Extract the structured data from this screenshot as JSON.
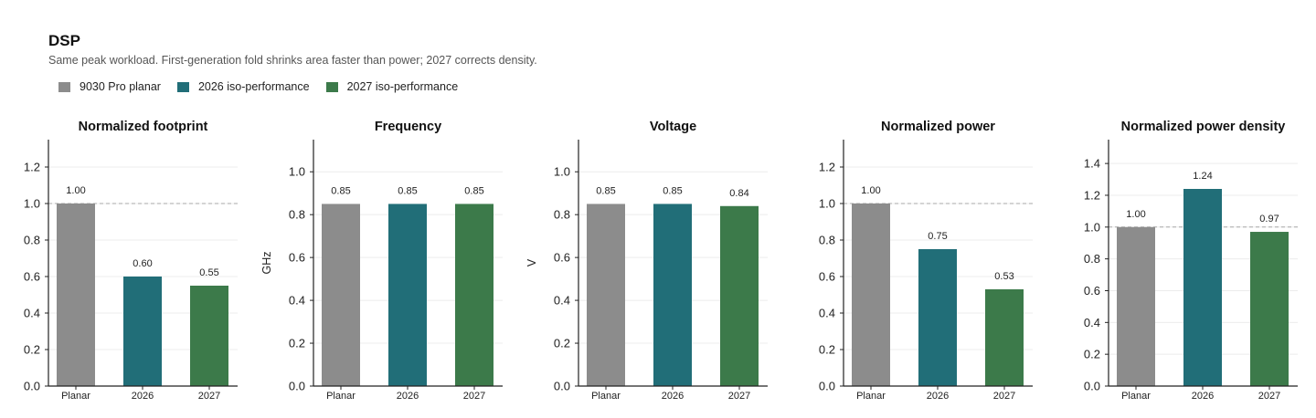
{
  "header": {
    "title": "DSP",
    "subtitle": "Same peak workload. First-generation fold shrinks area faster than power; 2027 corrects density."
  },
  "legend": [
    {
      "label": "9030 Pro planar",
      "color": "#8c8c8c"
    },
    {
      "label": "2026 iso-performance",
      "color": "#216e78"
    },
    {
      "label": "2027 iso-performance",
      "color": "#3c7a4a"
    }
  ],
  "chart_data": [
    {
      "type": "bar",
      "title": "Normalized footprint",
      "ylabel": "",
      "categories": [
        "Planar",
        "2026",
        "2027"
      ],
      "values": [
        1.0,
        0.6,
        0.55
      ],
      "value_labels": [
        "1.00",
        "0.60",
        "0.55"
      ],
      "ylim": [
        0,
        1.35
      ],
      "yticks": [
        0.0,
        0.2,
        0.4,
        0.6,
        0.8,
        1.0,
        1.2
      ],
      "ytick_labels": [
        "0.0",
        "0.2",
        "0.4",
        "0.6",
        "0.8",
        "1.0",
        "1.2"
      ],
      "reference_line": 1.0,
      "grid": true
    },
    {
      "type": "bar",
      "title": "Frequency",
      "ylabel": "GHz",
      "categories": [
        "Planar",
        "2026",
        "2027"
      ],
      "values": [
        0.85,
        0.85,
        0.85
      ],
      "value_labels": [
        "0.85",
        "0.85",
        "0.85"
      ],
      "ylim": [
        0,
        1.15
      ],
      "yticks": [
        0.0,
        0.2,
        0.4,
        0.6,
        0.8,
        1.0
      ],
      "ytick_labels": [
        "0.0",
        "0.2",
        "0.4",
        "0.6",
        "0.8",
        "1.0"
      ],
      "reference_line": null,
      "grid": true
    },
    {
      "type": "bar",
      "title": "Voltage",
      "ylabel": "V",
      "categories": [
        "Planar",
        "2026",
        "2027"
      ],
      "values": [
        0.85,
        0.85,
        0.84
      ],
      "value_labels": [
        "0.85",
        "0.85",
        "0.84"
      ],
      "ylim": [
        0,
        1.15
      ],
      "yticks": [
        0.0,
        0.2,
        0.4,
        0.6,
        0.8,
        1.0
      ],
      "ytick_labels": [
        "0.0",
        "0.2",
        "0.4",
        "0.6",
        "0.8",
        "1.0"
      ],
      "reference_line": null,
      "grid": true
    },
    {
      "type": "bar",
      "title": "Normalized power",
      "ylabel": "",
      "categories": [
        "Planar",
        "2026",
        "2027"
      ],
      "values": [
        1.0,
        0.75,
        0.53
      ],
      "value_labels": [
        "1.00",
        "0.75",
        "0.53"
      ],
      "ylim": [
        0,
        1.35
      ],
      "yticks": [
        0.0,
        0.2,
        0.4,
        0.6,
        0.8,
        1.0,
        1.2
      ],
      "ytick_labels": [
        "0.0",
        "0.2",
        "0.4",
        "0.6",
        "0.8",
        "1.0",
        "1.2"
      ],
      "reference_line": 1.0,
      "grid": true
    },
    {
      "type": "bar",
      "title": "Normalized power density",
      "ylabel": "",
      "categories": [
        "Planar",
        "2026",
        "2027"
      ],
      "values": [
        1.0,
        1.24,
        0.97
      ],
      "value_labels": [
        "1.00",
        "1.24",
        "0.97"
      ],
      "ylim": [
        0,
        1.55
      ],
      "yticks": [
        0.0,
        0.2,
        0.4,
        0.6,
        0.8,
        1.0,
        1.2,
        1.4
      ],
      "ytick_labels": [
        "0.0",
        "0.2",
        "0.4",
        "0.6",
        "0.8",
        "1.0",
        "1.2",
        "1.4"
      ],
      "reference_line": 1.0,
      "grid": true
    }
  ]
}
